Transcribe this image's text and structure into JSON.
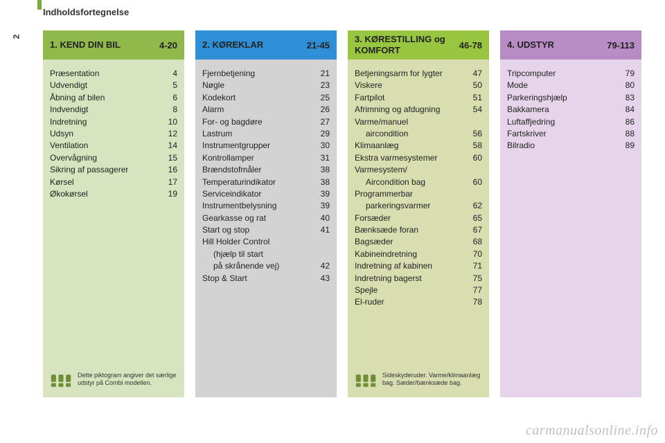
{
  "page_number": "2",
  "header_title": "Indholdsfortegnelse",
  "watermark": "carmanualsonline.info",
  "columns": [
    {
      "header_bg": "#8fb94a",
      "body_bg": "#d7e4bf",
      "title": "1. KEND DIN BIL",
      "range": "4-20",
      "entries": [
        {
          "label": "Præsentation",
          "page": "4"
        },
        {
          "label": "Udvendigt",
          "page": "5"
        },
        {
          "label": "Åbning af bilen",
          "page": "6"
        },
        {
          "label": "Indvendigt",
          "page": "8"
        },
        {
          "label": "Indretning",
          "page": "10"
        },
        {
          "label": "Udsyn",
          "page": "12"
        },
        {
          "label": "Ventilation",
          "page": "14"
        },
        {
          "label": "Overvågning",
          "page": "15"
        },
        {
          "label": "Sikring af passagerer",
          "page": "16"
        },
        {
          "label": "Kørsel",
          "page": "17"
        },
        {
          "label": "Økokørsel",
          "page": "19"
        }
      ],
      "footnote": "Dette piktogram angiver det særlige udstyr på Combi modellen.",
      "has_icon": true,
      "icon_color": "#6e8f3a"
    },
    {
      "header_bg": "#2f8fd6",
      "body_bg": "#d3d3d3",
      "title": "2. KØREKLAR",
      "range": "21-45",
      "entries": [
        {
          "label": "Fjernbetjening",
          "page": "21"
        },
        {
          "label": "Nøgle",
          "page": "23"
        },
        {
          "label": "Kodekort",
          "page": "25"
        },
        {
          "label": "Alarm",
          "page": "26"
        },
        {
          "label": "For- og bagdøre",
          "page": "27"
        },
        {
          "label": "Lastrum",
          "page": "29"
        },
        {
          "label": "Instrumentgrupper",
          "page": "30"
        },
        {
          "label": "Kontrollamper",
          "page": "31"
        },
        {
          "label": "Brændstofmåler",
          "page": "38"
        },
        {
          "label": "Temperaturindikator",
          "page": "38"
        },
        {
          "label": "Serviceindikator",
          "page": "39"
        },
        {
          "label": "Instrumentbelysning",
          "page": "39"
        },
        {
          "label": "Gearkasse og rat",
          "page": "40"
        },
        {
          "label": "Start og stop",
          "page": "41"
        },
        {
          "label": "Hill Holder Control",
          "page": ""
        },
        {
          "label": "(hjælp til start",
          "page": "",
          "sub": true
        },
        {
          "label": "på skrånende vej)",
          "page": "42",
          "sub": true
        },
        {
          "label": "Stop & Start",
          "page": "43"
        }
      ],
      "has_icon": false
    },
    {
      "header_bg": "#99c640",
      "body_bg": "#d8deb0",
      "title": "3. KØRESTILLING og KOMFORT",
      "range": "46-78",
      "entries": [
        {
          "label": "Betjeningsarm for lygter",
          "page": "47"
        },
        {
          "label": "Viskere",
          "page": "50"
        },
        {
          "label": "Fartpilot",
          "page": "51"
        },
        {
          "label": "Afrimning og afdugning",
          "page": "54"
        },
        {
          "label": "Varme/manuel",
          "page": ""
        },
        {
          "label": "aircondition",
          "page": "56",
          "sub": true
        },
        {
          "label": "Klimaanlæg",
          "page": "58"
        },
        {
          "label": "Ekstra varmesystemer",
          "page": "60"
        },
        {
          "label": "Varmesystem/",
          "page": ""
        },
        {
          "label": "Aircondition bag",
          "page": "60",
          "sub": true
        },
        {
          "label": "Programmerbar",
          "page": ""
        },
        {
          "label": "parkeringsvarmer",
          "page": "62",
          "sub": true
        },
        {
          "label": "Forsæder",
          "page": "65"
        },
        {
          "label": "Bænksæde foran",
          "page": "67"
        },
        {
          "label": "Bagsæder",
          "page": "68"
        },
        {
          "label": "Kabineindretning",
          "page": "70"
        },
        {
          "label": "Indretning af kabinen",
          "page": "71"
        },
        {
          "label": "Indretning bagerst",
          "page": "75"
        },
        {
          "label": "Spejle",
          "page": "77"
        },
        {
          "label": "El-ruder",
          "page": "78"
        }
      ],
      "footnote": "Sideskyderuder. Varme/klimaanlæg bag. Sæder/bænksæde bag.",
      "has_icon": true,
      "icon_color": "#6e8f3a"
    },
    {
      "header_bg": "#b78bc3",
      "body_bg": "#e6d4ea",
      "title": "4. UDSTYR",
      "range": "79-113",
      "entries": [
        {
          "label": "Tripcomputer",
          "page": "79"
        },
        {
          "label": "Mode",
          "page": "80"
        },
        {
          "label": "Parkeringshjælp",
          "page": "83"
        },
        {
          "label": "Bakkamera",
          "page": "84"
        },
        {
          "label": "Luftaffjedring",
          "page": "86"
        },
        {
          "label": "Fartskriver",
          "page": "88"
        },
        {
          "label": "Bilradio",
          "page": "89"
        }
      ],
      "has_icon": false
    }
  ]
}
